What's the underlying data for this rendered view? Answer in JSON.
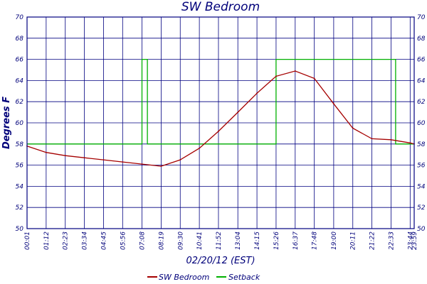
{
  "chart_data": {
    "type": "line",
    "title": "SW Bedroom",
    "xlabel": "02/20/12 (EST)",
    "ylabel": "Degrees F",
    "ylim": [
      50,
      70
    ],
    "yticks": [
      50,
      52,
      54,
      56,
      58,
      60,
      62,
      64,
      66,
      68,
      70
    ],
    "xlim": [
      "00:01",
      "23:59"
    ],
    "xtick_labels": [
      "00:01",
      "01:12",
      "02:23",
      "03:34",
      "04:45",
      "05:56",
      "07:08",
      "08:19",
      "09:30",
      "10:41",
      "11:52",
      "13:04",
      "14:15",
      "15:26",
      "16:37",
      "17:48",
      "19:00",
      "20:11",
      "21:22",
      "22:33",
      "23:44",
      "23:59"
    ],
    "grid": true,
    "legend_position": "bottom-center",
    "series": [
      {
        "name": "SW Bedroom",
        "color": "#a50000",
        "x": [
          "00:01",
          "01:12",
          "02:23",
          "03:34",
          "04:45",
          "05:56",
          "07:08",
          "08:19",
          "09:30",
          "10:41",
          "11:52",
          "13:04",
          "14:15",
          "15:26",
          "16:37",
          "17:48",
          "19:00",
          "20:11",
          "21:22",
          "22:33",
          "23:44",
          "23:59"
        ],
        "values": [
          57.8,
          57.2,
          56.9,
          56.7,
          56.5,
          56.3,
          56.1,
          55.9,
          56.5,
          57.6,
          59.2,
          61.0,
          62.8,
          64.4,
          64.9,
          64.2,
          61.8,
          59.5,
          58.5,
          58.4,
          58.1,
          58.0
        ]
      },
      {
        "name": "Setback",
        "color": "#00b000",
        "steps": [
          {
            "x": "00:01",
            "value": 58
          },
          {
            "x": "07:08",
            "value": 58
          },
          {
            "x": "07:08",
            "value": 66
          },
          {
            "x": "07:28",
            "value": 66
          },
          {
            "x": "07:28",
            "value": 58
          },
          {
            "x": "15:26",
            "value": 58
          },
          {
            "x": "15:26",
            "value": 66
          },
          {
            "x": "22:50",
            "value": 66
          },
          {
            "x": "22:50",
            "value": 58
          },
          {
            "x": "23:59",
            "value": 58
          }
        ]
      }
    ]
  }
}
